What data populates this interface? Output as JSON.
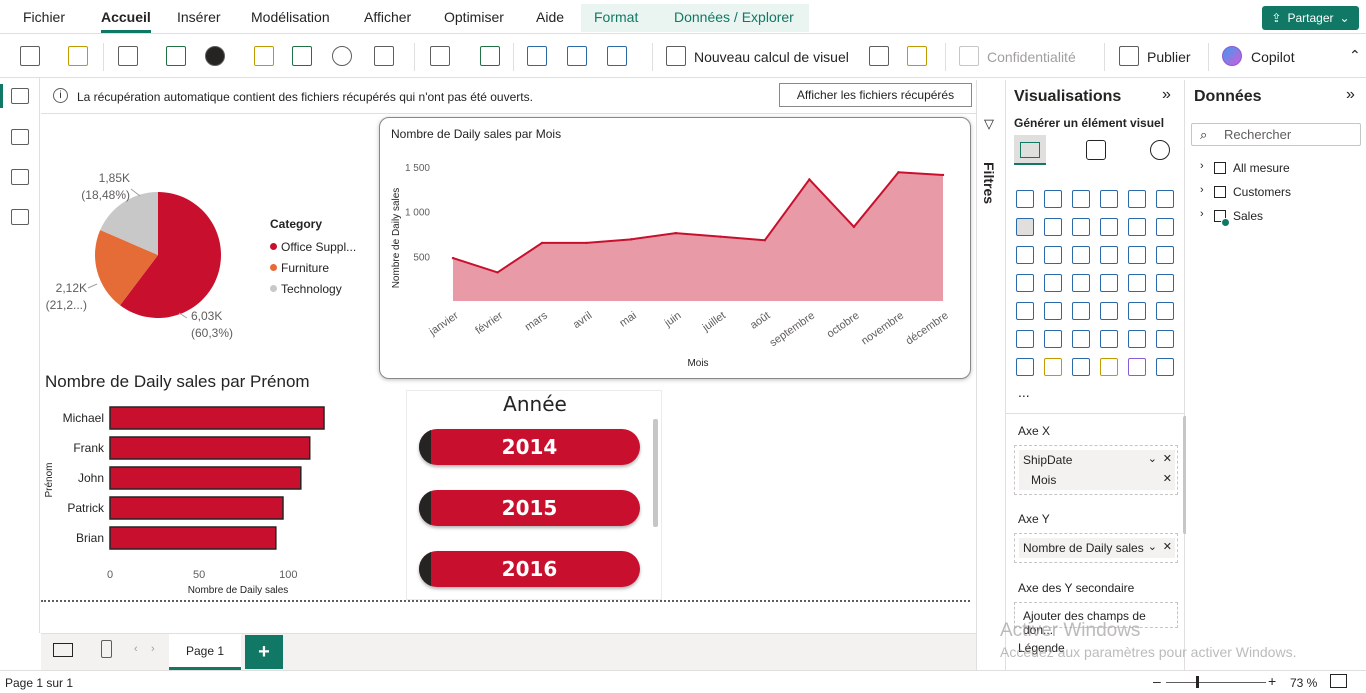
{
  "menu": {
    "items": [
      "Fichier",
      "Accueil",
      "Insérer",
      "Modélisation",
      "Afficher",
      "Optimiser",
      "Aide",
      "Format",
      "Données / Explorer"
    ],
    "share_label": "Partager"
  },
  "ribbon": {
    "new_visual_calc": "Nouveau calcul de visuel",
    "confidentiality": "Confidentialité",
    "publish": "Publier",
    "copilot": "Copilot"
  },
  "banner": {
    "text": "La récupération automatique contient des fichiers récupérés qui n'ont pas été ouverts.",
    "button": "Afficher les fichiers récupérés"
  },
  "pie": {
    "legend_title": "Category",
    "slices": [
      {
        "label": "Office Suppl...",
        "value": 6.03,
        "value_label": "6,03K",
        "pct_label": "(60,3%)",
        "color": "#c8102e"
      },
      {
        "label": "Furniture",
        "value": 2.12,
        "value_label": "2,12K",
        "pct_label": "(21,2...)",
        "color": "#e66c37"
      },
      {
        "label": "Technology",
        "value": 1.85,
        "value_label": "1,85K",
        "pct_label": "(18,48%)",
        "color": "#c8c8c8"
      }
    ]
  },
  "area_chart": {
    "title": "Nombre de Daily sales par Mois",
    "xlabel": "Mois",
    "ylabel": "Nombre de Daily sales"
  },
  "bar_chart": {
    "title": "Nombre de Daily sales par Prénom",
    "xlabel": "Nombre de Daily sales",
    "ylabel": "Prénom"
  },
  "slicer": {
    "title": "Année",
    "items": [
      "2014",
      "2015",
      "2016"
    ]
  },
  "chart_data": [
    {
      "type": "pie",
      "categories": [
        "Office Suppl...",
        "Furniture",
        "Technology"
      ],
      "values": [
        6030,
        2120,
        1850
      ],
      "legend_title": "Category"
    },
    {
      "type": "area",
      "title": "Nombre de Daily sales par Mois",
      "xlabel": "Mois",
      "ylabel": "Nombre de Daily sales",
      "categories": [
        "janvier",
        "février",
        "mars",
        "avril",
        "mai",
        "juin",
        "juillet",
        "août",
        "septembre",
        "octobre",
        "novembre",
        "décembre"
      ],
      "values": [
        480,
        320,
        650,
        650,
        690,
        760,
        720,
        680,
        1360,
        830,
        1440,
        1410
      ],
      "ylim": [
        0,
        1600
      ],
      "yticks": [
        500,
        1000,
        1500
      ],
      "ytick_labels": [
        "500",
        "1 000",
        "1 500"
      ],
      "color": "#c8102e"
    },
    {
      "type": "bar",
      "orientation": "horizontal",
      "title": "Nombre de Daily sales par Prénom",
      "xlabel": "Nombre de Daily sales",
      "ylabel": "Prénom",
      "categories": [
        "Michael",
        "Frank",
        "John",
        "Patrick",
        "Brian"
      ],
      "values": [
        120,
        112,
        107,
        97,
        93
      ],
      "xlim": [
        0,
        120
      ],
      "xticks": [
        0,
        50,
        100
      ],
      "xtick_labels": [
        "0",
        "50",
        "100"
      ],
      "color": "#c8102e"
    }
  ],
  "filters": {
    "label": "Filtres"
  },
  "visualizations": {
    "title": "Visualisations",
    "build_label": "Générer un élément visuel",
    "more": "...",
    "wells": [
      {
        "label": "Axe X",
        "items": [
          "ShipDate",
          "Mois"
        ]
      },
      {
        "label": "Axe Y",
        "items": [
          "Nombre de Daily sales"
        ]
      },
      {
        "label": "Axe des Y secondaire",
        "placeholder": "Ajouter des champs de don..."
      },
      {
        "label": "Légende"
      }
    ]
  },
  "data_pane": {
    "title": "Données",
    "search_placeholder": "Rechercher",
    "tables": [
      "All mesure",
      "Customers",
      "Sales"
    ]
  },
  "pages": {
    "tabs": [
      "Page 1"
    ],
    "add": "+"
  },
  "status": {
    "page": "Page 1 sur 1",
    "zoom": "73 %"
  },
  "watermark": {
    "line1": "Activer Windows",
    "line2": "Accédez aux paramètres pour activer Windows."
  }
}
